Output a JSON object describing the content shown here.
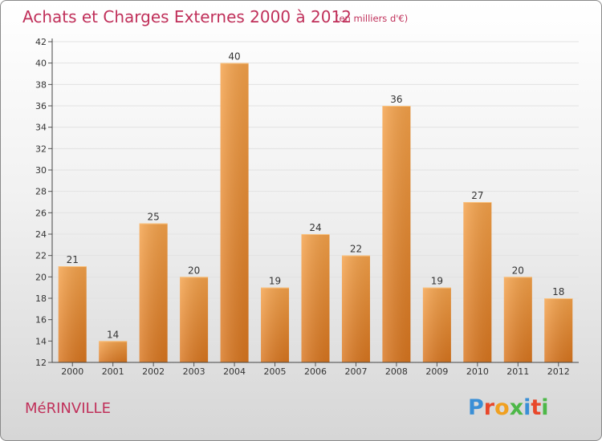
{
  "chart_data": {
    "type": "bar",
    "title": "Achats et Charges Externes 2000 à 2012",
    "subtitle": "(en milliers d'€)",
    "categories": [
      "2000",
      "2001",
      "2002",
      "2003",
      "2004",
      "2005",
      "2006",
      "2007",
      "2008",
      "2009",
      "2010",
      "2011",
      "2012"
    ],
    "values": [
      21,
      14,
      25,
      20,
      40,
      19,
      24,
      22,
      36,
      19,
      27,
      20,
      18
    ],
    "ylim": [
      12,
      42
    ],
    "yticks": [
      12,
      14,
      16,
      18,
      20,
      22,
      24,
      26,
      28,
      30,
      32,
      34,
      36,
      38,
      40,
      42
    ],
    "grid": true,
    "colors": {
      "bar_light": "#f5a24a",
      "bar_dark": "#d9761f",
      "title": "#c0305a",
      "axis": "#333333"
    }
  },
  "footer": {
    "commune": "MéRINVILLE",
    "brand": "Proxiti"
  },
  "brand_colors": [
    "#3a8fd6",
    "#e8472a",
    "#f0a020",
    "#4db848",
    "#3a8fd6",
    "#e8472a",
    "#4db848"
  ]
}
